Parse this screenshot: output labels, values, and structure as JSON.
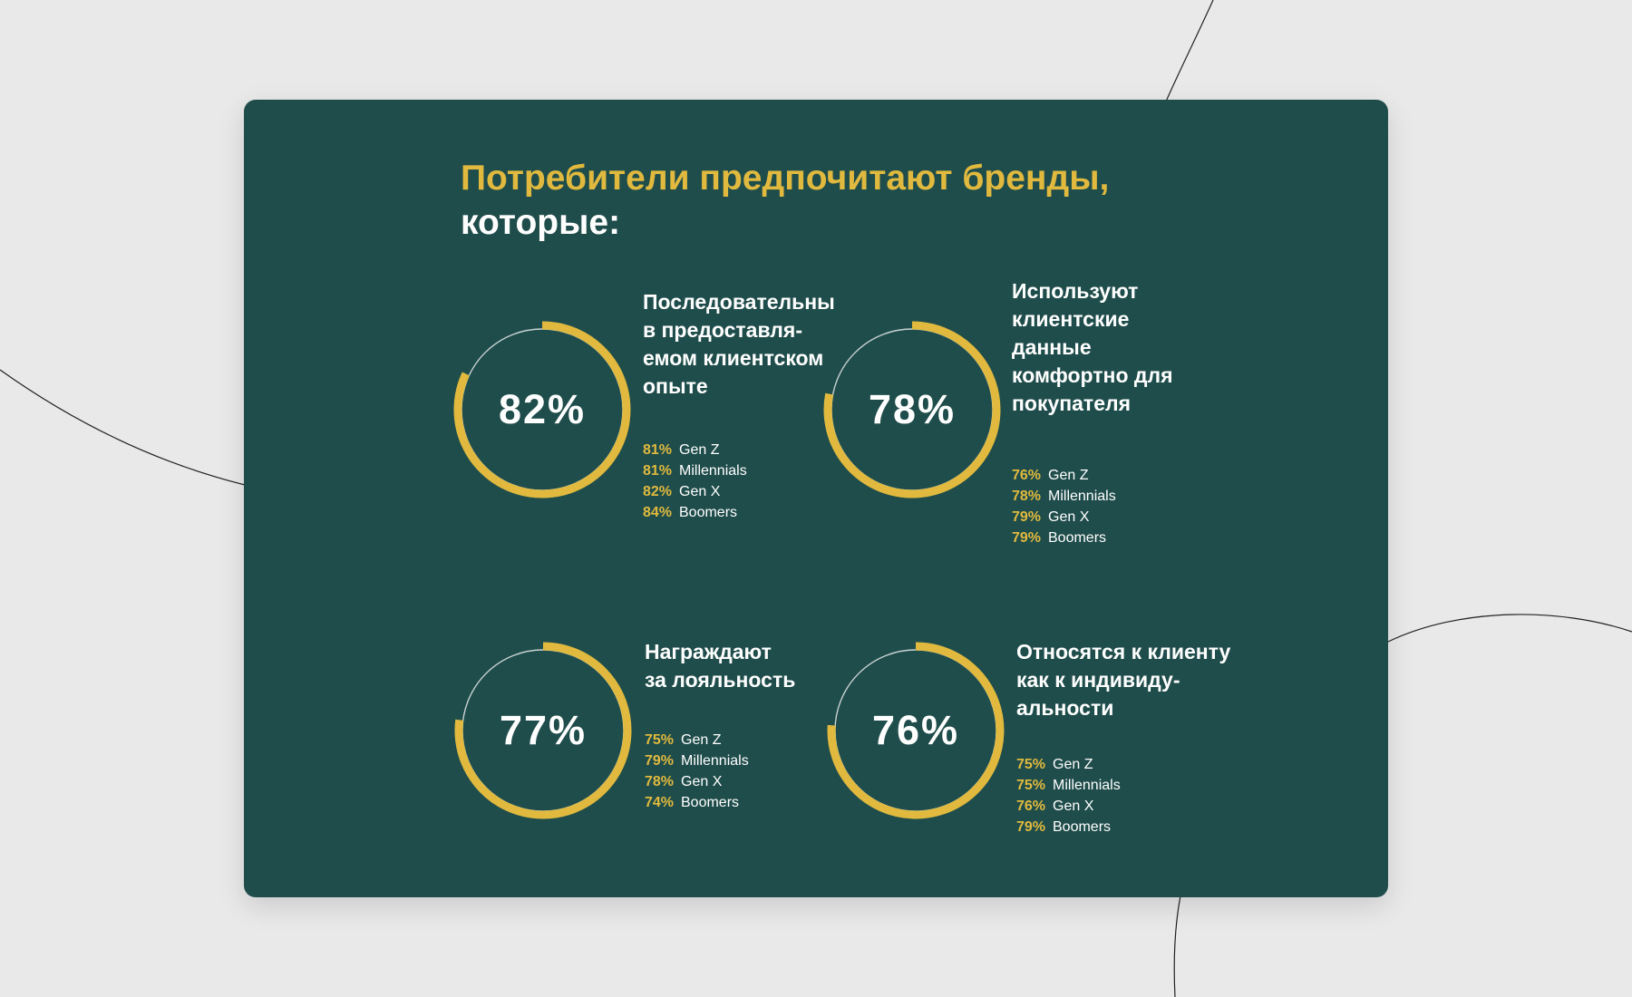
{
  "title": {
    "line1": "Потребители предпочитают бренды,",
    "line2": "которые:"
  },
  "colors": {
    "background": "#e9e9e9",
    "card": "#1f4d4b",
    "accent": "#e0b93e",
    "text": "#ffffff",
    "track": "#c9d3d2"
  },
  "chart_data": [
    {
      "type": "pie",
      "value": 82,
      "value_label": "82%",
      "heading_lines": [
        "Последовательны",
        "в предоставля-",
        "емом клиентском",
        "опыте"
      ],
      "breakdown": [
        {
          "pct": "81%",
          "label": "Gen Z"
        },
        {
          "pct": "81%",
          "label": "Millennials"
        },
        {
          "pct": "82%",
          "label": "Gen X"
        },
        {
          "pct": "84%",
          "label": "Boomers"
        }
      ]
    },
    {
      "type": "pie",
      "value": 78,
      "value_label": "78%",
      "heading_lines": [
        "Используют",
        "клиентские",
        "данные",
        "комфортно для",
        "покупателя"
      ],
      "breakdown": [
        {
          "pct": "76%",
          "label": "Gen Z"
        },
        {
          "pct": "78%",
          "label": "Millennials"
        },
        {
          "pct": "79%",
          "label": "Gen X"
        },
        {
          "pct": "79%",
          "label": "Boomers"
        }
      ]
    },
    {
      "type": "pie",
      "value": 77,
      "value_label": "77%",
      "heading_lines": [
        "Награждают",
        "за лояльность"
      ],
      "breakdown": [
        {
          "pct": "75%",
          "label": "Gen Z"
        },
        {
          "pct": "79%",
          "label": "Millennials"
        },
        {
          "pct": "78%",
          "label": "Gen X"
        },
        {
          "pct": "74%",
          "label": "Boomers"
        }
      ]
    },
    {
      "type": "pie",
      "value": 76,
      "value_label": "76%",
      "heading_lines": [
        "Относятся к клиенту",
        "как к индивиду-",
        "альности"
      ],
      "breakdown": [
        {
          "pct": "75%",
          "label": "Gen Z"
        },
        {
          "pct": "75%",
          "label": "Millennials"
        },
        {
          "pct": "76%",
          "label": "Gen X"
        },
        {
          "pct": "79%",
          "label": "Boomers"
        }
      ]
    }
  ]
}
